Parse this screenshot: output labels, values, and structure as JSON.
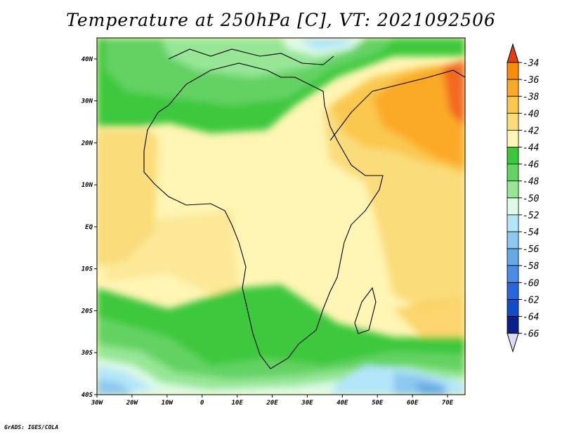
{
  "title": "Temperature at 250hPa [C], VT: 2021092506",
  "credit": "GrADS: IGES/COLA",
  "map": {
    "lon_range": [
      -30,
      75
    ],
    "lat_range": [
      -40,
      45
    ],
    "lon_ticks": [
      {
        "v": -30,
        "label": "30W"
      },
      {
        "v": -20,
        "label": "20W"
      },
      {
        "v": -10,
        "label": "10W"
      },
      {
        "v": 0,
        "label": "0"
      },
      {
        "v": 10,
        "label": "10E"
      },
      {
        "v": 20,
        "label": "20E"
      },
      {
        "v": 30,
        "label": "30E"
      },
      {
        "v": 40,
        "label": "40E"
      },
      {
        "v": 50,
        "label": "50E"
      },
      {
        "v": 60,
        "label": "60E"
      },
      {
        "v": 70,
        "label": "70E"
      }
    ],
    "lat_ticks": [
      {
        "v": 40,
        "label": "40N"
      },
      {
        "v": 30,
        "label": "30N"
      },
      {
        "v": 20,
        "label": "20N"
      },
      {
        "v": 10,
        "label": "10N"
      },
      {
        "v": 0,
        "label": "EQ"
      },
      {
        "v": -10,
        "label": "10S"
      },
      {
        "v": -20,
        "label": "20S"
      },
      {
        "v": -30,
        "label": "30S"
      },
      {
        "v": -40,
        "label": "40S"
      }
    ]
  },
  "colorbar": {
    "labels": [
      "-34",
      "-36",
      "-38",
      "-40",
      "-42",
      "-44",
      "-46",
      "-48",
      "-50",
      "-52",
      "-54",
      "-56",
      "-58",
      "-60",
      "-62",
      "-64",
      "-66"
    ],
    "colors": [
      "#f05a1e",
      "#fa8c0a",
      "#faaa28",
      "#fac850",
      "#fadc7a",
      "#fff5b4",
      "#3cc83c",
      "#64d264",
      "#96e696",
      "#dcfae6",
      "#b4e6fa",
      "#8cc8f0",
      "#64aae6",
      "#4b8ce6",
      "#2864dc",
      "#144bc8",
      "#0a1e8c"
    ],
    "top_color": "#e63c14",
    "bottom_color": "#dcdcfa"
  }
}
